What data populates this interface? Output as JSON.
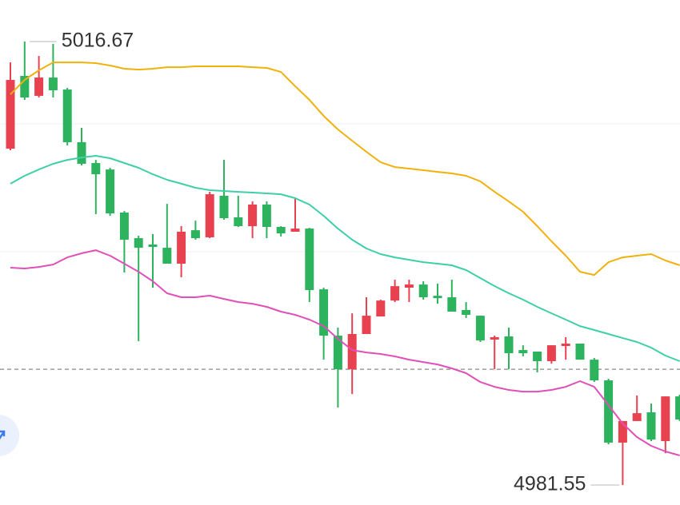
{
  "chart_data": {
    "type": "candlestick",
    "up_color": "#e8414f",
    "down_color": "#2db35d",
    "ylim": [
      4979.97,
      5019.96
    ],
    "grid_lines": [
      5010.15,
      5000.03
    ],
    "reference_line": 4990.72,
    "max_label": 5016.67,
    "min_label": 4981.55,
    "open": [
      5008.19,
      5013.95,
      5012.37,
      5013.82,
      5012.87,
      5008.7,
      5007.05,
      5006.54,
      5003.13,
      5001.1,
      5000.6,
      5000.34,
      4999.08,
      5001.73,
      5001.17,
      5004.46,
      5002.75,
      5002.05,
      5003.76,
      5001.99,
      5001.61,
      5001.86,
      4997.05,
      4993.38,
      4990.72,
      4993.51,
      4994.9,
      4996.16,
      4997.18,
      4997.43,
      4996.54,
      4996.42,
      4995.41,
      4994.96,
      4993.07,
      4993.32,
      4992.24,
      4992.12,
      4991.36,
      4992.56,
      4992.75,
      4991.48,
      4989.84,
      4984.91,
      4986.62,
      4987.31,
      4985.03,
      4988.57
    ],
    "high": [
      5015.02,
      5016.67,
      5015.53,
      5016.48,
      5013.0,
      5009.84,
      5007.3,
      5006.67,
      5003.25,
      5001.29,
      5001.42,
      5003.82,
      5002.05,
      5002.49,
      5004.77,
      5007.3,
      5004.46,
      5004.01,
      5004.01,
      5002.05,
      5004.27,
      5001.92,
      4997.18,
      4994.02,
      4995.15,
      4996.42,
      4996.23,
      4997.81,
      4997.81,
      4997.69,
      4997.5,
      4997.81,
      4996.04,
      4994.96,
      4993.38,
      4994.02,
      4992.62,
      4992.12,
      4992.62,
      4993.26,
      4992.75,
      4991.61,
      4989.97,
      4986.62,
      4988.64,
      4988.0,
      4988.57,
      4988.7
    ],
    "low": [
      5008.06,
      5012.05,
      5012.24,
      5012.24,
      5008.44,
      5006.86,
      5003.0,
      5002.87,
      4998.38,
      4992.94,
      4997.18,
      4999.08,
      4998.0,
      5000.98,
      5001.1,
      5002.56,
      5001.99,
      5001.1,
      5001.1,
      5001.23,
      5001.61,
      4996.04,
      4991.48,
      4987.69,
      4988.76,
      4993.51,
      4994.9,
      4996.04,
      4996.04,
      4996.23,
      4995.91,
      4995.28,
      4994.78,
      4992.88,
      4990.72,
      4990.72,
      4991.74,
      4990.47,
      4991.17,
      4991.48,
      4991.48,
      4989.71,
      4984.78,
      4981.55,
      4986.62,
      4985.03,
      4984.07,
      4986.62
    ],
    "close": [
      5013.63,
      5012.24,
      5013.82,
      5012.81,
      5008.7,
      5006.99,
      5006.16,
      5003.06,
      5000.98,
      5000.34,
      5000.41,
      4999.08,
      5001.61,
      5001.1,
      5004.58,
      5002.68,
      5002.05,
      5003.76,
      5001.99,
      5001.48,
      5001.86,
      4996.99,
      4993.38,
      4990.72,
      4993.51,
      4994.96,
      4996.16,
      4997.3,
      4997.43,
      4996.42,
      4996.35,
      4995.28,
      4995.03,
      4993.0,
      4993.26,
      4991.99,
      4991.99,
      4991.36,
      4992.62,
      4992.75,
      4991.48,
      4989.84,
      4984.91,
      4986.62,
      4987.24,
      4985.15,
      4988.57,
      4986.74
    ],
    "bands": [
      {
        "color": "#f0b10a",
        "values": [
          5012.49,
          5013.63,
          5014.39,
          5015.02,
          5015.02,
          5015.02,
          5014.96,
          5014.77,
          5014.52,
          5014.45,
          5014.52,
          5014.64,
          5014.64,
          5014.71,
          5014.71,
          5014.71,
          5014.71,
          5014.64,
          5014.58,
          5014.26,
          5013.13,
          5012.05,
          5010.78,
          5009.71,
          5008.82,
          5007.94,
          5007.11,
          5006.73,
          5006.61,
          5006.48,
          5006.35,
          5006.23,
          5006.04,
          5005.6,
          5004.77,
          5004.01,
          5003.19,
          5002.05,
          5000.85,
          4999.71,
          4998.44,
          4998.19,
          4999.2,
          4999.58,
          4999.71,
          4999.84,
          4999.33,
          4998.95
        ]
      },
      {
        "color": "#3ecfa8",
        "values": [
          5005.41,
          5006.04,
          5006.54,
          5006.99,
          5007.3,
          5007.49,
          5007.62,
          5007.43,
          5007.05,
          5006.67,
          5006.16,
          5005.72,
          5005.41,
          5005.09,
          5004.9,
          5004.84,
          5004.77,
          5004.71,
          5004.65,
          5004.58,
          5004.27,
          5003.76,
          5002.87,
          5001.86,
          5000.98,
          5000.28,
          4999.84,
          4999.58,
          4999.39,
          4999.2,
          4999.08,
          4998.95,
          4998.57,
          4997.94,
          4997.31,
          4996.74,
          4996.23,
          4995.66,
          4995.15,
          4994.65,
          4994.14,
          4993.83,
          4993.51,
          4993.19,
          4992.88,
          4992.43,
          4991.8,
          4991.36
        ]
      },
      {
        "color": "#e050b8",
        "values": [
          4998.76,
          4998.7,
          4998.82,
          4999.01,
          4999.58,
          4999.9,
          5000.15,
          4999.71,
          4999.08,
          4998.44,
          4997.69,
          4996.74,
          4996.42,
          4996.42,
          4996.55,
          4996.29,
          4996.04,
          4995.91,
          4995.66,
          4995.28,
          4995.03,
          4994.65,
          4994.14,
          4993.13,
          4992.24,
          4992.05,
          4991.93,
          4991.74,
          4991.48,
          4991.29,
          4991.1,
          4990.79,
          4990.41,
          4989.71,
          4989.33,
          4989.08,
          4988.95,
          4988.95,
          4989.08,
          4989.33,
          4989.78,
          4989.33,
          4987.88,
          4986.42,
          4985.35,
          4984.65,
          4984.21,
          4983.89
        ]
      }
    ]
  }
}
